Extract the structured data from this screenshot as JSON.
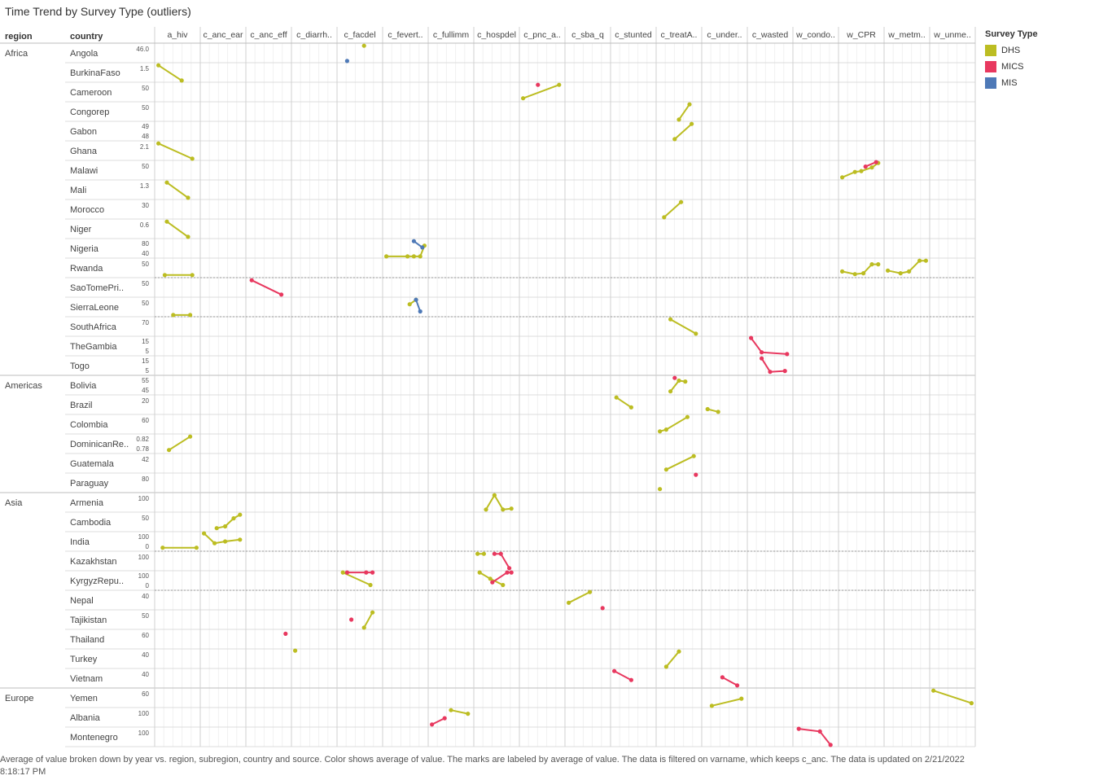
{
  "title": "Time Trend by Survey Type (outliers)",
  "caption": "Average of value broken down by year vs. region, subregion, country and source.  Color shows average of value.  The marks are labeled by average of value. The data is filtered on varname, which keeps c_anc. The data is updated on 2/21/2022 8:18:17 PM",
  "legend": {
    "title": "Survey Type",
    "items": [
      {
        "label": "DHS",
        "color": "#bcbd22"
      },
      {
        "label": "MICS",
        "color": "#e8385f"
      },
      {
        "label": "MIS",
        "color": "#4e79b7"
      }
    ]
  },
  "chart_data": {
    "type": "line",
    "row_headers": [
      "region",
      "country"
    ],
    "columns": [
      "a_hiv",
      "c_anc_ear",
      "c_anc_eff",
      "c_diarrh..",
      "c_facdel",
      "c_fevert..",
      "c_fullimm",
      "c_hospdel",
      "c_pnc_a..",
      "c_sba_q",
      "c_stunted",
      "c_treatA..",
      "c_under..",
      "c_wasted",
      "w_condo..",
      "w_CPR",
      "w_metm..",
      "w_unme.."
    ],
    "regions": [
      {
        "name": "Africa",
        "rows": 17
      },
      {
        "name": "Americas",
        "rows": 6
      },
      {
        "name": "Asia",
        "rows": 10
      },
      {
        "name": "Europe",
        "rows": 2
      }
    ],
    "countries": [
      {
        "name": "Angola",
        "ticks": [
          "46.0"
        ]
      },
      {
        "name": "BurkinaFaso",
        "ticks": [
          "1.5"
        ]
      },
      {
        "name": "Cameroon",
        "ticks": [
          "50"
        ]
      },
      {
        "name": "Congorep",
        "ticks": [
          "50"
        ]
      },
      {
        "name": "Gabon",
        "ticks": [
          "49",
          "48"
        ]
      },
      {
        "name": "Ghana",
        "ticks": [
          "2.1"
        ]
      },
      {
        "name": "Malawi",
        "ticks": [
          "50"
        ]
      },
      {
        "name": "Mali",
        "ticks": [
          "1.3"
        ]
      },
      {
        "name": "Morocco",
        "ticks": [
          "30"
        ]
      },
      {
        "name": "Niger",
        "ticks": [
          "0.6"
        ]
      },
      {
        "name": "Nigeria",
        "ticks": [
          "80",
          "40"
        ]
      },
      {
        "name": "Rwanda",
        "ticks": [
          "50"
        ]
      },
      {
        "name": "SaoTomePri..",
        "ticks": [
          "50"
        ]
      },
      {
        "name": "SierraLeone",
        "ticks": [
          "50"
        ]
      },
      {
        "name": "SouthAfrica",
        "ticks": [
          "70"
        ]
      },
      {
        "name": "TheGambia",
        "ticks": [
          "15",
          "5"
        ]
      },
      {
        "name": "Togo",
        "ticks": [
          "15",
          "5"
        ]
      },
      {
        "name": "Bolivia",
        "ticks": [
          "55",
          "45"
        ]
      },
      {
        "name": "Brazil",
        "ticks": [
          "20"
        ]
      },
      {
        "name": "Colombia",
        "ticks": [
          "60"
        ]
      },
      {
        "name": "DominicanRe..",
        "ticks": [
          "0.82",
          "0.78"
        ]
      },
      {
        "name": "Guatemala",
        "ticks": [
          "42"
        ]
      },
      {
        "name": "Paraguay",
        "ticks": [
          "80"
        ]
      },
      {
        "name": "Armenia",
        "ticks": [
          "100"
        ]
      },
      {
        "name": "Cambodia",
        "ticks": [
          "50"
        ]
      },
      {
        "name": "India",
        "ticks": [
          "100",
          "0"
        ]
      },
      {
        "name": "Kazakhstan",
        "ticks": [
          "100"
        ]
      },
      {
        "name": "KyrgyzRepu..",
        "ticks": [
          "100",
          "0"
        ]
      },
      {
        "name": "Nepal",
        "ticks": [
          "40"
        ]
      },
      {
        "name": "Tajikistan",
        "ticks": [
          "50"
        ]
      },
      {
        "name": "Thailand",
        "ticks": [
          "60"
        ]
      },
      {
        "name": "Turkey",
        "ticks": [
          "40"
        ]
      },
      {
        "name": "Vietnam",
        "ticks": [
          "40"
        ]
      },
      {
        "name": "Yemen",
        "ticks": [
          "60"
        ]
      },
      {
        "name": "Albania",
        "ticks": [
          "100"
        ]
      },
      {
        "name": "Montenegro",
        "ticks": [
          "100"
        ]
      }
    ],
    "series": [
      {
        "row": 0,
        "col": 4,
        "type": "DHS",
        "points": [
          [
            0.6,
            0.1
          ]
        ]
      },
      {
        "row": 0,
        "col": 4,
        "type": "MIS",
        "points": [
          [
            0.2,
            0.95
          ]
        ]
      },
      {
        "row": 1,
        "col": 0,
        "type": "DHS",
        "points": [
          [
            0.05,
            0.1
          ],
          [
            0.6,
            0.95
          ]
        ]
      },
      {
        "row": 2,
        "col": 8,
        "type": "MICS",
        "points": [
          [
            0.4,
            0.1
          ]
        ]
      },
      {
        "row": 2,
        "col": 8,
        "type": "DHS",
        "points": [
          [
            0.05,
            0.85
          ],
          [
            0.9,
            0.1
          ]
        ]
      },
      {
        "row": 3,
        "col": 11,
        "type": "DHS",
        "points": [
          [
            0.5,
            0.95
          ],
          [
            0.75,
            0.1
          ]
        ]
      },
      {
        "row": 4,
        "col": 11,
        "type": "DHS",
        "points": [
          [
            0.4,
            0.95
          ],
          [
            0.8,
            0.1
          ]
        ]
      },
      {
        "row": 5,
        "col": 0,
        "type": "DHS",
        "points": [
          [
            0.05,
            0.1
          ],
          [
            0.85,
            0.95
          ]
        ]
      },
      {
        "row": 6,
        "col": 15,
        "type": "DHS",
        "points": [
          [
            0.05,
            0.9
          ],
          [
            0.35,
            0.6
          ],
          [
            0.5,
            0.55
          ],
          [
            0.75,
            0.35
          ],
          [
            0.9,
            0.1
          ]
        ]
      },
      {
        "row": 6,
        "col": 15,
        "type": "MICS",
        "points": [
          [
            0.6,
            0.3
          ],
          [
            0.85,
            0.05
          ]
        ]
      },
      {
        "row": 7,
        "col": 0,
        "type": "DHS",
        "points": [
          [
            0.25,
            0.1
          ],
          [
            0.75,
            0.95
          ]
        ]
      },
      {
        "row": 8,
        "col": 11,
        "type": "DHS",
        "points": [
          [
            0.15,
            0.95
          ],
          [
            0.55,
            0.1
          ]
        ]
      },
      {
        "row": 9,
        "col": 0,
        "type": "DHS",
        "points": [
          [
            0.25,
            0.1
          ],
          [
            0.75,
            0.95
          ]
        ]
      },
      {
        "row": 10,
        "col": 5,
        "type": "DHS",
        "points": [
          [
            0.05,
            0.95
          ],
          [
            0.55,
            0.95
          ],
          [
            0.7,
            0.95
          ],
          [
            0.85,
            0.95
          ],
          [
            0.95,
            0.35
          ]
        ]
      },
      {
        "row": 10,
        "col": 5,
        "type": "MIS",
        "points": [
          [
            0.7,
            0.1
          ],
          [
            0.9,
            0.45
          ]
        ]
      },
      {
        "row": 11,
        "col": 0,
        "type": "DHS",
        "points": [
          [
            0.2,
            0.9
          ],
          [
            0.85,
            0.9
          ]
        ]
      },
      {
        "row": 11,
        "col": 15,
        "type": "DHS",
        "points": [
          [
            0.05,
            0.7
          ],
          [
            0.35,
            0.85
          ],
          [
            0.55,
            0.8
          ],
          [
            0.75,
            0.3
          ],
          [
            0.9,
            0.3
          ]
        ]
      },
      {
        "row": 11,
        "col": 16,
        "type": "DHS",
        "points": [
          [
            0.05,
            0.65
          ],
          [
            0.35,
            0.8
          ],
          [
            0.55,
            0.7
          ],
          [
            0.8,
            0.1
          ],
          [
            0.95,
            0.1
          ]
        ]
      },
      {
        "row": 12,
        "col": 2,
        "type": "MICS",
        "points": [
          [
            0.1,
            0.1
          ],
          [
            0.8,
            0.9
          ]
        ]
      },
      {
        "row": 13,
        "col": 5,
        "type": "DHS",
        "points": [
          [
            0.6,
            0.35
          ],
          [
            0.75,
            0.1
          ]
        ]
      },
      {
        "row": 13,
        "col": 5,
        "type": "MIS",
        "points": [
          [
            0.75,
            0.1
          ],
          [
            0.85,
            0.75
          ]
        ]
      },
      {
        "row": 13,
        "col": 0,
        "type": "DHS",
        "points": [
          [
            0.4,
            0.95
          ],
          [
            0.8,
            0.95
          ]
        ]
      },
      {
        "row": 14,
        "col": 11,
        "type": "DHS",
        "points": [
          [
            0.3,
            0.1
          ],
          [
            0.9,
            0.9
          ]
        ]
      },
      {
        "row": 15,
        "col": 13,
        "type": "MICS",
        "points": [
          [
            0.05,
            0.05
          ],
          [
            0.3,
            0.85
          ],
          [
            0.9,
            0.95
          ]
        ]
      },
      {
        "row": 16,
        "col": 13,
        "type": "MICS",
        "points": [
          [
            0.3,
            0.1
          ],
          [
            0.5,
            0.85
          ],
          [
            0.85,
            0.8
          ]
        ]
      },
      {
        "row": 17,
        "col": 11,
        "type": "MICS",
        "points": [
          [
            0.4,
            0.1
          ]
        ]
      },
      {
        "row": 17,
        "col": 11,
        "type": "DHS",
        "points": [
          [
            0.3,
            0.85
          ],
          [
            0.5,
            0.25
          ],
          [
            0.65,
            0.3
          ]
        ]
      },
      {
        "row": 18,
        "col": 10,
        "type": "DHS",
        "points": [
          [
            0.1,
            0.1
          ],
          [
            0.45,
            0.65
          ]
        ]
      },
      {
        "row": 18,
        "col": 12,
        "type": "DHS",
        "points": [
          [
            0.1,
            0.75
          ],
          [
            0.35,
            0.9
          ]
        ]
      },
      {
        "row": 19,
        "col": 11,
        "type": "DHS",
        "points": [
          [
            0.05,
            0.9
          ],
          [
            0.2,
            0.8
          ],
          [
            0.7,
            0.1
          ]
        ]
      },
      {
        "row": 20,
        "col": 0,
        "type": "DHS",
        "points": [
          [
            0.3,
            0.85
          ],
          [
            0.8,
            0.1
          ]
        ]
      },
      {
        "row": 21,
        "col": 11,
        "type": "DHS",
        "points": [
          [
            0.2,
            0.85
          ],
          [
            0.85,
            0.1
          ]
        ]
      },
      {
        "row": 22,
        "col": 11,
        "type": "MICS",
        "points": [
          [
            0.9,
            0.05
          ]
        ]
      },
      {
        "row": 22,
        "col": 11,
        "type": "DHS",
        "points": [
          [
            0.05,
            0.85
          ]
        ]
      },
      {
        "row": 23,
        "col": 7,
        "type": "DHS",
        "points": [
          [
            0.25,
            0.9
          ],
          [
            0.45,
            0.1
          ],
          [
            0.65,
            0.9
          ],
          [
            0.85,
            0.85
          ]
        ]
      },
      {
        "row": 24,
        "col": 1,
        "type": "DHS",
        "points": [
          [
            0.35,
            0.85
          ],
          [
            0.55,
            0.75
          ],
          [
            0.75,
            0.3
          ],
          [
            0.9,
            0.1
          ]
        ]
      },
      {
        "row": 25,
        "col": 1,
        "type": "DHS",
        "points": [
          [
            0.05,
            0.05
          ],
          [
            0.3,
            0.6
          ],
          [
            0.55,
            0.5
          ],
          [
            0.9,
            0.4
          ]
        ]
      },
      {
        "row": 25,
        "col": 0,
        "type": "DHS",
        "points": [
          [
            0.15,
            0.85
          ],
          [
            0.95,
            0.85
          ]
        ]
      },
      {
        "row": 26,
        "col": 7,
        "type": "DHS",
        "points": [
          [
            0.05,
            0.1
          ],
          [
            0.2,
            0.1
          ]
        ]
      },
      {
        "row": 26,
        "col": 7,
        "type": "MICS",
        "points": [
          [
            0.45,
            0.1
          ],
          [
            0.6,
            0.1
          ],
          [
            0.8,
            0.9
          ]
        ]
      },
      {
        "row": 27,
        "col": 7,
        "type": "DHS",
        "points": [
          [
            0.1,
            0.05
          ],
          [
            0.35,
            0.4
          ],
          [
            0.65,
            0.75
          ]
        ]
      },
      {
        "row": 27,
        "col": 7,
        "type": "MICS",
        "points": [
          [
            0.4,
            0.6
          ],
          [
            0.75,
            0.05
          ],
          [
            0.85,
            0.05
          ]
        ]
      },
      {
        "row": 27,
        "col": 4,
        "type": "DHS",
        "points": [
          [
            0.1,
            0.05
          ],
          [
            0.75,
            0.75
          ]
        ]
      },
      {
        "row": 27,
        "col": 4,
        "type": "MICS",
        "points": [
          [
            0.2,
            0.05
          ],
          [
            0.65,
            0.05
          ],
          [
            0.8,
            0.05
          ]
        ]
      },
      {
        "row": 28,
        "col": 9,
        "type": "DHS",
        "points": [
          [
            0.05,
            0.65
          ],
          [
            0.55,
            0.05
          ]
        ]
      },
      {
        "row": 28,
        "col": 9,
        "type": "MICS",
        "points": [
          [
            0.85,
            0.95
          ]
        ]
      },
      {
        "row": 29,
        "col": 4,
        "type": "DHS",
        "points": [
          [
            0.6,
            0.95
          ],
          [
            0.8,
            0.1
          ]
        ]
      },
      {
        "row": 29,
        "col": 4,
        "type": "MICS",
        "points": [
          [
            0.3,
            0.5
          ]
        ]
      },
      {
        "row": 30,
        "col": 2,
        "type": "MICS",
        "points": [
          [
            0.9,
            0.2
          ]
        ]
      },
      {
        "row": 31,
        "col": 3,
        "type": "DHS",
        "points": [
          [
            0.05,
            0.05
          ]
        ]
      },
      {
        "row": 31,
        "col": 11,
        "type": "DHS",
        "points": [
          [
            0.2,
            0.95
          ],
          [
            0.5,
            0.1
          ]
        ]
      },
      {
        "row": 32,
        "col": 10,
        "type": "MICS",
        "points": [
          [
            0.05,
            0.1
          ],
          [
            0.45,
            0.6
          ]
        ]
      },
      {
        "row": 32,
        "col": 12,
        "type": "MICS",
        "points": [
          [
            0.45,
            0.45
          ],
          [
            0.8,
            0.9
          ]
        ]
      },
      {
        "row": 33,
        "col": 12,
        "type": "DHS",
        "points": [
          [
            0.2,
            0.95
          ],
          [
            0.9,
            0.55
          ]
        ]
      },
      {
        "row": 33,
        "col": 17,
        "type": "DHS",
        "points": [
          [
            0.05,
            0.1
          ],
          [
            0.95,
            0.8
          ]
        ]
      },
      {
        "row": 34,
        "col": 6,
        "type": "DHS",
        "points": [
          [
            0.5,
            0.1
          ],
          [
            0.9,
            0.3
          ]
        ]
      },
      {
        "row": 34,
        "col": 6,
        "type": "MICS",
        "points": [
          [
            0.05,
            0.9
          ],
          [
            0.35,
            0.55
          ]
        ]
      },
      {
        "row": 35,
        "col": 14,
        "type": "MICS",
        "points": [
          [
            0.1,
            0.05
          ],
          [
            0.6,
            0.2
          ],
          [
            0.85,
            0.95
          ]
        ]
      }
    ]
  }
}
